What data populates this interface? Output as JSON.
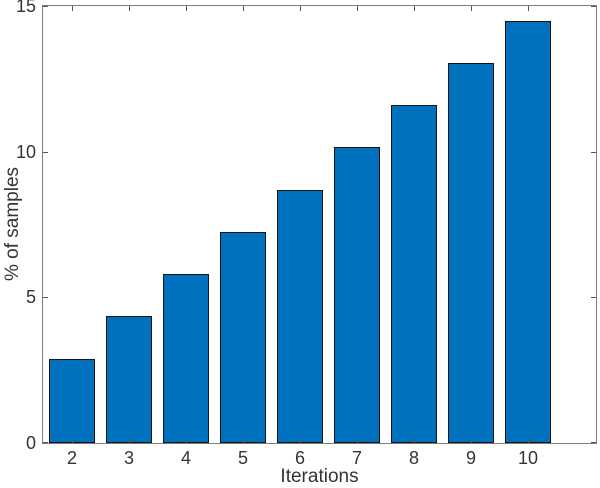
{
  "chart_data": {
    "type": "bar",
    "title": "",
    "xlabel": "Iterations",
    "ylabel": "% of samples",
    "categories": [
      "2",
      "3",
      "4",
      "5",
      "6",
      "7",
      "8",
      "9",
      "10"
    ],
    "values": [
      2.9,
      4.35,
      5.8,
      7.25,
      8.7,
      10.15,
      11.6,
      13.05,
      14.5
    ],
    "ylim": [
      0,
      15
    ],
    "ytick_labels": [
      "0",
      "5",
      "10",
      "15"
    ],
    "ytick_values": [
      0,
      5,
      10,
      15
    ],
    "grid": false,
    "legend_position": "none",
    "box": "on",
    "tick_direction": "in",
    "bar_fill_color": "#0072BD",
    "bar_edge_color": "#101418",
    "axis_color": "#7d7d7d",
    "tick_color": "#565656",
    "text_color": "#343434",
    "background_color": "#ffffff"
  }
}
